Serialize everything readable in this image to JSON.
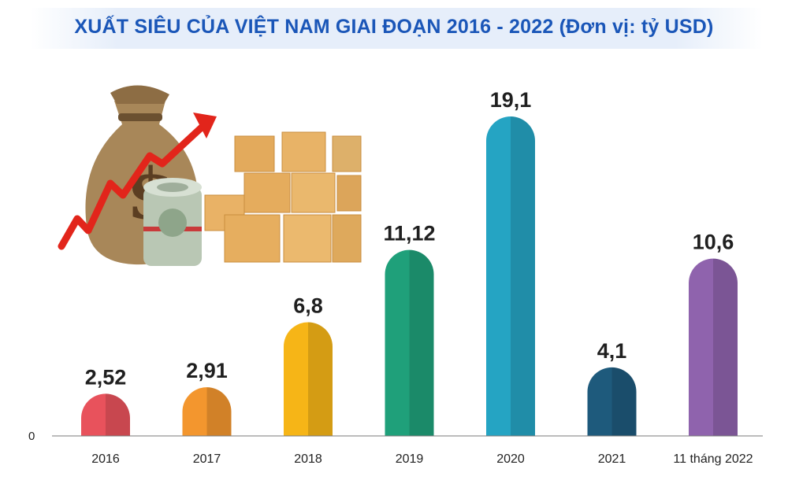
{
  "title": "XUẤT SIÊU CỦA VIỆT NAM GIAI ĐOẠN 2016 - 2022 (Đơn vị: tỷ USD)",
  "chart_data": {
    "type": "bar",
    "title": "XUẤT SIÊU CỦA VIỆT NAM GIAI ĐOẠN 2016 - 2022 (Đơn vị: tỷ USD)",
    "categories": [
      "2016",
      "2017",
      "2018",
      "2019",
      "2020",
      "2021",
      "11 tháng 2022"
    ],
    "values": [
      2.52,
      2.91,
      6.8,
      11.12,
      19.1,
      4.1,
      10.6
    ],
    "value_labels": [
      "2,52",
      "2,91",
      "6,8",
      "11,12",
      "19,1",
      "4,1",
      "10,6"
    ],
    "y_tick_labels": [
      "0"
    ],
    "ylim": [
      0,
      19.1
    ],
    "grid": false,
    "legend": "none",
    "xlabel": "",
    "ylabel": "",
    "bar_colors": [
      "#e8525c",
      "#f3962e",
      "#f6b517",
      "#1fa07a",
      "#25a4c3",
      "#1e5a7c",
      "#8f63ad"
    ]
  },
  "illustration": {
    "icons": [
      "money-bag-icon",
      "growth-arrow-icon",
      "dollar-roll-icon",
      "cardboard-boxes-icon"
    ]
  }
}
